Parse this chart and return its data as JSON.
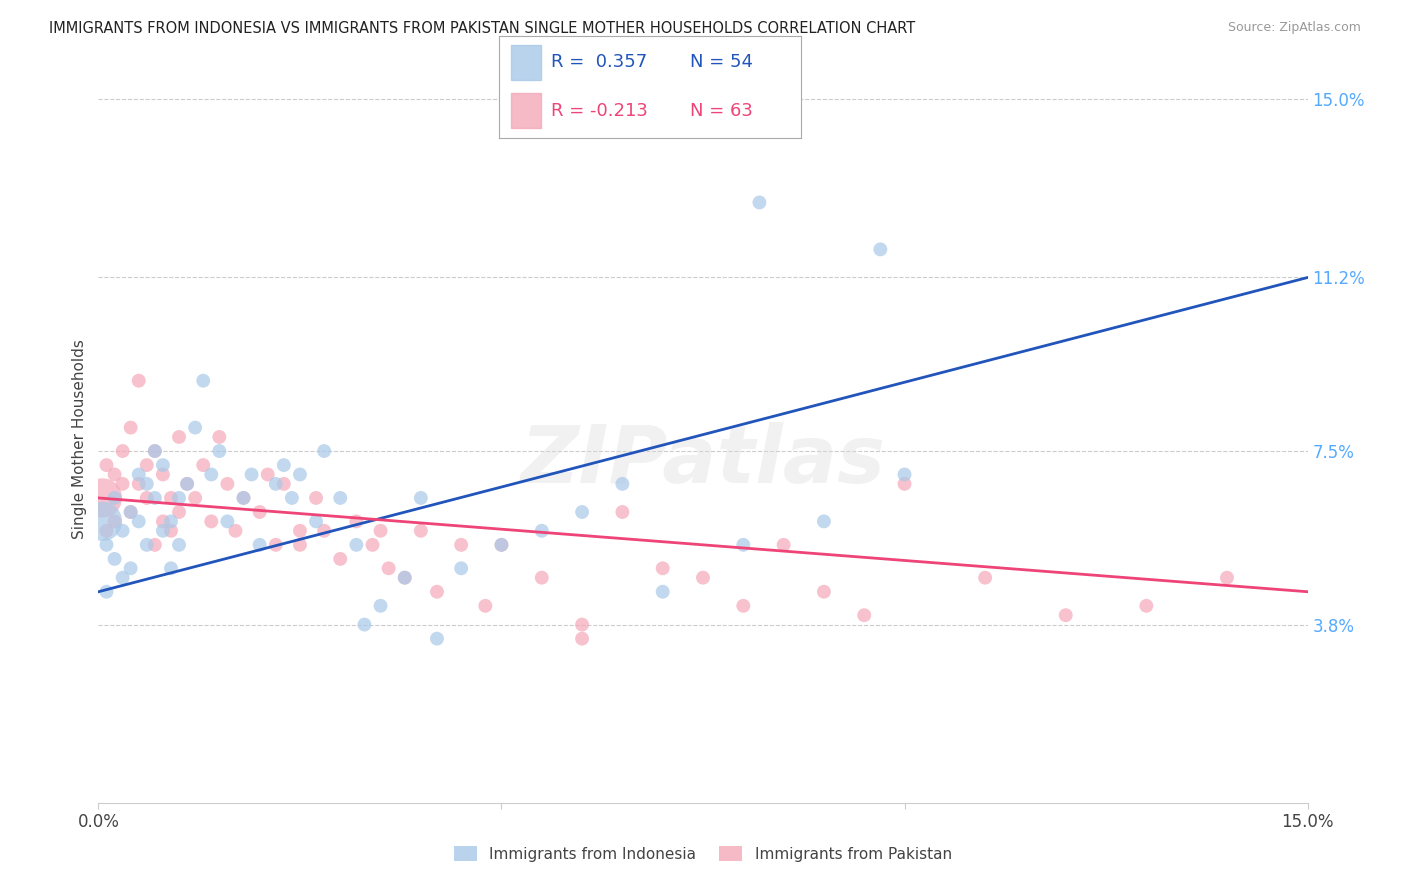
{
  "title": "IMMIGRANTS FROM INDONESIA VS IMMIGRANTS FROM PAKISTAN SINGLE MOTHER HOUSEHOLDS CORRELATION CHART",
  "source": "Source: ZipAtlas.com",
  "ylabel": "Single Mother Households",
  "xlim": [
    0,
    0.15
  ],
  "ylim": [
    0,
    0.155
  ],
  "xtick_vals": [
    0.0,
    0.05,
    0.1,
    0.15
  ],
  "xtick_labels": [
    "0.0%",
    "",
    "",
    "15.0%"
  ],
  "ytick_vals": [
    0.038,
    0.075,
    0.112,
    0.15
  ],
  "ytick_labels": [
    "3.8%",
    "7.5%",
    "11.2%",
    "15.0%"
  ],
  "watermark": "ZIPatlas",
  "legend_blue_r": "0.357",
  "legend_blue_n": "54",
  "legend_pink_r": "-0.213",
  "legend_pink_n": "63",
  "blue_color": "#A8C8E8",
  "pink_color": "#F4A8B8",
  "line_blue": "#2255BB",
  "line_pink": "#EE4477",
  "right_tick_color": "#55AAFF",
  "indonesia_label": "Immigrants from Indonesia",
  "pakistan_label": "Immigrants from Pakistan",
  "blue_line_y0": 0.045,
  "blue_line_y1": 0.112,
  "pink_line_y0": 0.065,
  "pink_line_y1": 0.045,
  "background_color": "#FFFFFF",
  "grid_color": "#CCCCCC"
}
